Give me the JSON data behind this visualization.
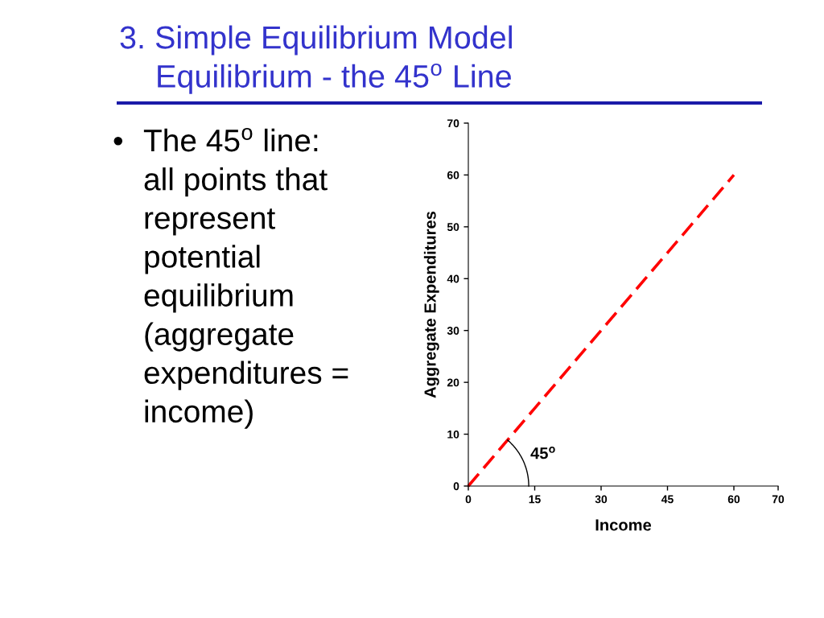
{
  "chart_data": {
    "type": "line",
    "title": "3. Simple Equilibrium Model",
    "subtitle": "Equilibrium - the 45$^{o}$ Line",
    "xlabel": "Income",
    "ylabel": "Aggregate Expenditures",
    "x": [
      0,
      15,
      30,
      45,
      60
    ],
    "series": [
      {
        "color": "#ff0000",
        "values": [
          0,
          15,
          30,
          45,
          60
        ]
      }
    ],
    "line_style": "dashed",
    "xlim": [
      0,
      70
    ],
    "ylim": [
      0,
      70
    ],
    "xticks": [
      0,
      15,
      30,
      45,
      60,
      70
    ],
    "yticks": [
      0,
      10,
      20,
      30,
      40,
      50,
      60,
      70
    ],
    "grid": false,
    "annotations": [
      "• The 45$^{o}$ line: all points that represent potential equilibrium (aggregate expenditures = income)",
      "45$^{o}$"
    ]
  }
}
